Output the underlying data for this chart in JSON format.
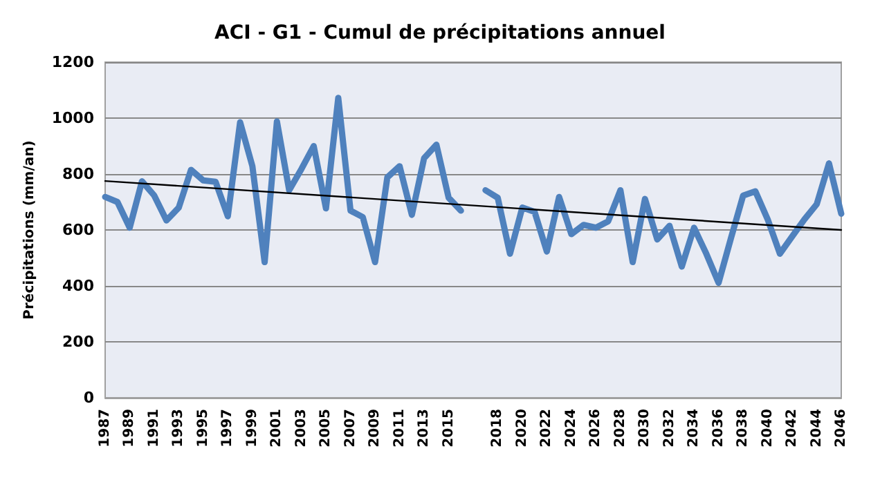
{
  "chart_data": {
    "type": "line",
    "title": "ACI - G1 - Cumul de précipitations annuel",
    "ylabel": "Précipitations (mm/an)",
    "categories": [
      "1987",
      null,
      "1989",
      null,
      "1991",
      null,
      "1993",
      null,
      "1995",
      null,
      "1997",
      null,
      "1999",
      null,
      "2001",
      null,
      "2003",
      null,
      "2005",
      null,
      "2007",
      null,
      "2009",
      null,
      "2011",
      null,
      "2013",
      null,
      "2015",
      null,
      null,
      null,
      "2018",
      null,
      "2020",
      null,
      "2022",
      null,
      "2024",
      null,
      "2026",
      null,
      "2028",
      null,
      "2030",
      null,
      "2032",
      null,
      "2034",
      null,
      "2036",
      null,
      "2038",
      null,
      "2040",
      null,
      "2042",
      null,
      "2044",
      null,
      "2046"
    ],
    "series": [
      {
        "color": "#4f81bd",
        "values": [
          718,
          700,
          608,
          774,
          723,
          634,
          680,
          815,
          777,
          772,
          649,
          985,
          828,
          485,
          988,
          742,
          818,
          900,
          677,
          1072,
          669,
          646,
          485,
          788,
          828,
          654,
          857,
          905,
          715,
          669,
          null,
          742,
          715,
          515,
          680,
          665,
          523,
          718,
          585,
          618,
          608,
          631,
          742,
          485,
          711,
          566,
          615,
          469,
          608,
          515,
          411,
          569,
          723,
          738,
          638,
          515,
          577,
          638,
          692,
          838,
          658
        ]
      },
      {
        "type": "line",
        "color": "#000000",
        "values": [
          775,
          null,
          null,
          null,
          null,
          null,
          null,
          null,
          null,
          null,
          null,
          null,
          null,
          null,
          null,
          null,
          null,
          null,
          null,
          null,
          null,
          null,
          null,
          null,
          null,
          null,
          null,
          null,
          null,
          null,
          null,
          null,
          null,
          null,
          null,
          null,
          null,
          null,
          null,
          null,
          null,
          null,
          null,
          null,
          null,
          null,
          null,
          null,
          null,
          null,
          null,
          null,
          null,
          null,
          null,
          null,
          null,
          null,
          null,
          null,
          600
        ]
      }
    ],
    "ylim": [
      0,
      1200
    ],
    "yticks": [
      0,
      200,
      400,
      600,
      800,
      1000,
      1200
    ],
    "grid": "y",
    "marker": "none"
  }
}
